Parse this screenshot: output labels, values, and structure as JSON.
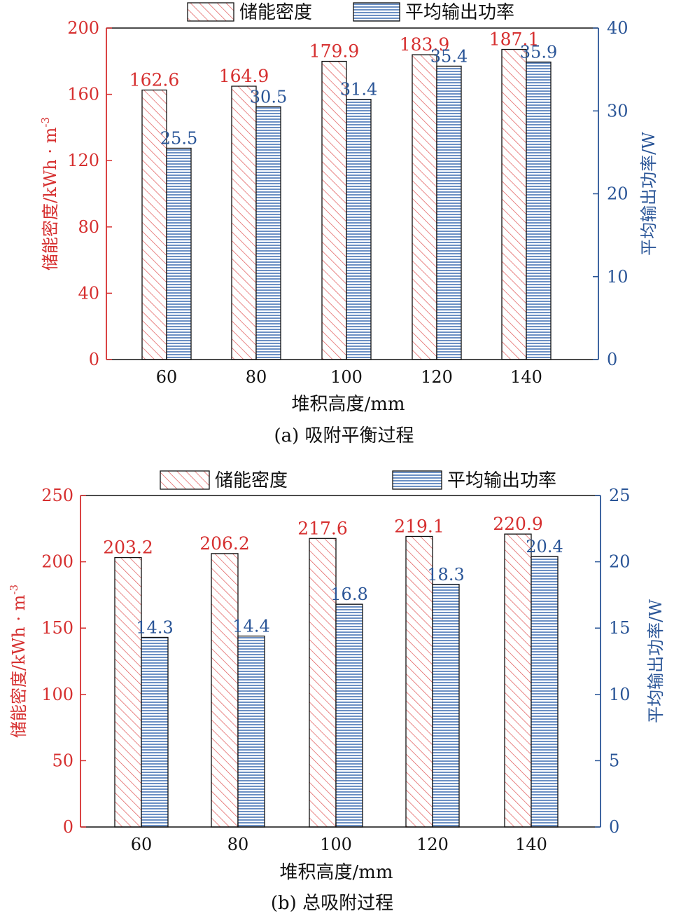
{
  "colors": {
    "left_axis": "#d62f2f",
    "right_axis": "#2a5597",
    "bar_hatch_red": "#e05555",
    "bar_hatch_blue": "#3a6ab0",
    "bar_outline": "#111111"
  },
  "chart_data": [
    {
      "type": "bar",
      "caption": "(a) 吸附平衡过程",
      "categories": [
        "60",
        "80",
        "100",
        "120",
        "140"
      ],
      "xlabel": "堆积高度/mm",
      "ylabel_left": "储能密度/kWh · m",
      "ylabel_left_sup": "-3",
      "ylabel_right": "平均输出功率/W",
      "ylim_left": [
        0,
        200
      ],
      "ylim_right": [
        0,
        40
      ],
      "yticks_left": [
        0,
        40,
        80,
        120,
        160,
        200
      ],
      "yticks_right": [
        0,
        10,
        20,
        30,
        40
      ],
      "legend_placement": "top",
      "series": [
        {
          "name": "储能密度",
          "axis": "left",
          "pattern": "diagonal-hatch",
          "values": [
            162.6,
            164.9,
            179.9,
            183.9,
            187.1
          ],
          "labels": [
            "162.6",
            "164.9",
            "179.9",
            "183.9",
            "187.1"
          ]
        },
        {
          "name": "平均输出功率",
          "axis": "right",
          "pattern": "horizontal-lines",
          "values": [
            25.5,
            30.5,
            31.4,
            35.4,
            35.9
          ],
          "labels": [
            "25.5",
            "30.5",
            "31.4",
            "35.4",
            "35.9"
          ]
        }
      ]
    },
    {
      "type": "bar",
      "caption": "(b) 总吸附过程",
      "categories": [
        "60",
        "80",
        "100",
        "120",
        "140"
      ],
      "xlabel": "堆积高度/mm",
      "ylabel_left": "储能密度/kWh · m",
      "ylabel_left_sup": "-3",
      "ylabel_right": "平均输出功率/W",
      "ylim_left": [
        0,
        250
      ],
      "ylim_right": [
        0,
        25
      ],
      "yticks_left": [
        0,
        50,
        100,
        150,
        200,
        250
      ],
      "yticks_right": [
        0,
        5,
        10,
        15,
        20,
        25
      ],
      "legend_placement": "top",
      "series": [
        {
          "name": "储能密度",
          "axis": "left",
          "pattern": "diagonal-hatch",
          "values": [
            203.2,
            206.2,
            217.6,
            219.1,
            220.9
          ],
          "labels": [
            "203.2",
            "206.2",
            "217.6",
            "219.1",
            "220.9"
          ]
        },
        {
          "name": "平均输出功率",
          "axis": "right",
          "pattern": "horizontal-lines",
          "values": [
            14.3,
            14.4,
            16.8,
            18.3,
            20.4
          ],
          "labels": [
            "14.3",
            "14.4",
            "16.8",
            "18.3",
            "20.4"
          ]
        }
      ]
    }
  ]
}
